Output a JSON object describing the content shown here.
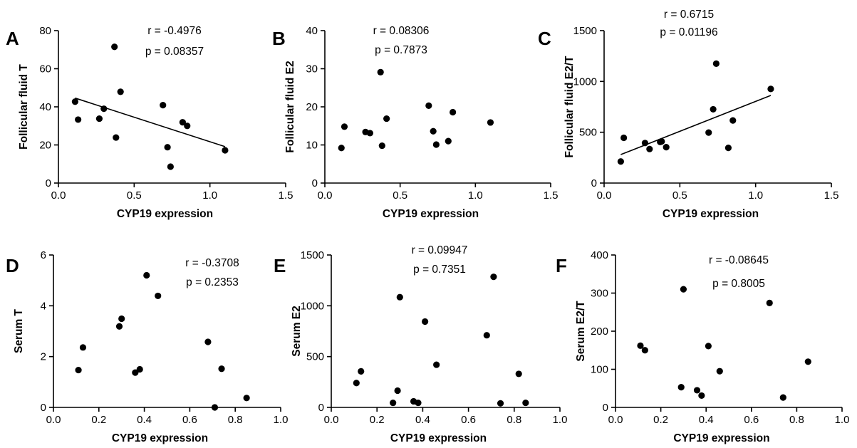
{
  "chart_data": [
    {
      "type": "scatter",
      "panel": "A",
      "xlabel": "CYP19 expression",
      "ylabel": "Follicular fluid T",
      "xlim": [
        0,
        1.5
      ],
      "ylim": [
        0,
        80
      ],
      "xticks": [
        "0.0",
        "0.5",
        "1.0",
        "1.5"
      ],
      "yticks": [
        "0",
        "20",
        "40",
        "60",
        "80"
      ],
      "stats": [
        "r = -0.4976",
        "p = 0.08357"
      ],
      "points": [
        [
          0.11,
          42.7
        ],
        [
          0.13,
          33.3
        ],
        [
          0.27,
          33.8
        ],
        [
          0.3,
          39.0
        ],
        [
          0.37,
          71.5
        ],
        [
          0.38,
          23.9
        ],
        [
          0.41,
          47.9
        ],
        [
          0.69,
          40.9
        ],
        [
          0.72,
          18.8
        ],
        [
          0.74,
          8.6
        ],
        [
          0.82,
          31.9
        ],
        [
          0.85,
          30.0
        ],
        [
          1.1,
          17.2
        ]
      ],
      "regression": [
        [
          0.11,
          44.6
        ],
        [
          1.1,
          19.1
        ]
      ]
    },
    {
      "type": "scatter",
      "panel": "B",
      "xlabel": "CYP19 expression",
      "ylabel": "Follicular fluid E2",
      "xlim": [
        0,
        1.5
      ],
      "ylim": [
        0,
        40
      ],
      "xticks": [
        "0.0",
        "0.5",
        "1.0",
        "1.5"
      ],
      "yticks": [
        "0",
        "10",
        "20",
        "30",
        "40"
      ],
      "stats": [
        "r = 0.08306",
        "p = 0.7873"
      ],
      "points": [
        [
          0.11,
          9.2
        ],
        [
          0.13,
          14.8
        ],
        [
          0.27,
          13.4
        ],
        [
          0.3,
          13.1
        ],
        [
          0.37,
          29.1
        ],
        [
          0.38,
          9.8
        ],
        [
          0.41,
          16.9
        ],
        [
          0.69,
          20.3
        ],
        [
          0.72,
          13.6
        ],
        [
          0.74,
          10.1
        ],
        [
          0.82,
          11.0
        ],
        [
          0.85,
          18.6
        ],
        [
          1.1,
          15.9
        ]
      ],
      "regression": []
    },
    {
      "type": "scatter",
      "panel": "C",
      "xlabel": "CYP19 expression",
      "ylabel": "Follicular fluid E2/T",
      "xlim": [
        0,
        1.5
      ],
      "ylim": [
        0,
        1500
      ],
      "xticks": [
        "0.0",
        "0.5",
        "1.0",
        "1.5"
      ],
      "yticks": [
        "0",
        "500",
        "1000",
        "1500"
      ],
      "stats": [
        "r = 0.6715",
        "p = 0.01196"
      ],
      "points": [
        [
          0.11,
          212
        ],
        [
          0.13,
          445
        ],
        [
          0.27,
          394
        ],
        [
          0.3,
          335
        ],
        [
          0.37,
          405
        ],
        [
          0.38,
          410
        ],
        [
          0.41,
          353
        ],
        [
          0.69,
          497
        ],
        [
          0.72,
          726
        ],
        [
          0.74,
          1175
        ],
        [
          0.82,
          346
        ],
        [
          0.85,
          616
        ],
        [
          1.1,
          926
        ]
      ],
      "regression": [
        [
          0.11,
          280
        ],
        [
          1.1,
          862
        ]
      ]
    },
    {
      "type": "scatter",
      "panel": "D",
      "xlabel": "CYP19 expression",
      "ylabel": "Serum T",
      "xlim": [
        0,
        1.0
      ],
      "ylim": [
        0,
        6
      ],
      "xticks": [
        "0.0",
        "0.2",
        "0.4",
        "0.6",
        "0.8",
        "1.0"
      ],
      "yticks": [
        "0",
        "2",
        "4",
        "6"
      ],
      "stats": [
        "r = -0.3708",
        "p = 0.2353"
      ],
      "points": [
        [
          0.11,
          1.47
        ],
        [
          0.13,
          2.36
        ],
        [
          0.29,
          3.19
        ],
        [
          0.3,
          3.49
        ],
        [
          0.36,
          1.37
        ],
        [
          0.38,
          1.5
        ],
        [
          0.41,
          5.2
        ],
        [
          0.46,
          4.39
        ],
        [
          0.68,
          2.58
        ],
        [
          0.71,
          0.0
        ],
        [
          0.74,
          1.52
        ],
        [
          0.85,
          0.37
        ]
      ],
      "regression": []
    },
    {
      "type": "scatter",
      "panel": "E",
      "xlabel": "CYP19 expression",
      "ylabel": "Serum E2",
      "xlim": [
        0,
        1.0
      ],
      "ylim": [
        0,
        1500
      ],
      "xticks": [
        "0.0",
        "0.2",
        "0.4",
        "0.6",
        "0.8",
        "1.0"
      ],
      "yticks": [
        "0",
        "500",
        "1000",
        "1500"
      ],
      "stats": [
        "r = 0.09947",
        "p = 0.7351"
      ],
      "points": [
        [
          0.11,
          240
        ],
        [
          0.13,
          355
        ],
        [
          0.27,
          45
        ],
        [
          0.29,
          165
        ],
        [
          0.3,
          1085
        ],
        [
          0.36,
          60
        ],
        [
          0.38,
          45
        ],
        [
          0.41,
          845
        ],
        [
          0.46,
          420
        ],
        [
          0.68,
          710
        ],
        [
          0.71,
          1285
        ],
        [
          0.74,
          40
        ],
        [
          0.82,
          330
        ],
        [
          0.85,
          45
        ]
      ],
      "regression": []
    },
    {
      "type": "scatter",
      "panel": "F",
      "xlabel": "CYP19 expression",
      "ylabel": "Serum E2/T",
      "xlim": [
        0,
        1.0
      ],
      "ylim": [
        0,
        400
      ],
      "xticks": [
        "0.0",
        "0.2",
        "0.4",
        "0.6",
        "0.8",
        "1.0"
      ],
      "yticks": [
        "0",
        "100",
        "200",
        "300",
        "400"
      ],
      "stats": [
        "r = -0.08645",
        "p = 0.8005"
      ],
      "points": [
        [
          0.11,
          162
        ],
        [
          0.13,
          150
        ],
        [
          0.29,
          53
        ],
        [
          0.3,
          310
        ],
        [
          0.36,
          45
        ],
        [
          0.38,
          31
        ],
        [
          0.41,
          161
        ],
        [
          0.46,
          95
        ],
        [
          0.68,
          274
        ],
        [
          0.74,
          26
        ],
        [
          0.85,
          120
        ]
      ],
      "regression": []
    }
  ]
}
